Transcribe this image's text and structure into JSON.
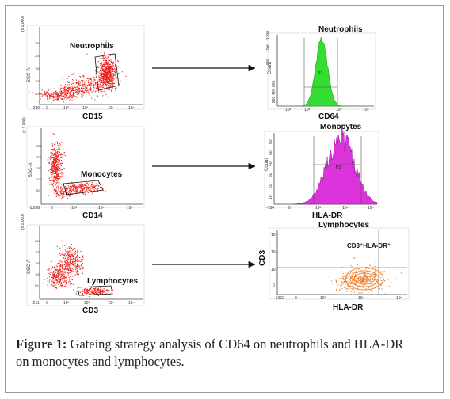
{
  "caption": {
    "figure_label": "Figure 1:",
    "text": " Gateing strategy analysis of CD64 on neutrophils and HLA-DR on monocytes and lymphocytes."
  },
  "colors": {
    "dot_red": "#e8201a",
    "hist_green": "#33dd33",
    "hist_magenta": "#dd33dd",
    "contour_orange": "#e87820",
    "frame": "#9a9a9a"
  },
  "panels": {
    "scatter_neutro": {
      "gate_label": "Neutrophils",
      "x_label": "CD15",
      "y_label": "SSC-A",
      "y_ticks": [
        "(x 1,000)",
        "250",
        "200",
        "150",
        "100",
        "50"
      ],
      "x_ticks": [
        "-289",
        "0",
        "10²",
        "10³",
        "10⁴",
        "10⁵"
      ]
    },
    "hist_neutro": {
      "title": "Neutrophils",
      "x_label": "CD64",
      "y_label": "Count",
      "gate": "P3",
      "y_ticks": [
        "1200",
        "1000",
        "800",
        "600",
        "400",
        "200"
      ],
      "x_ticks": [
        "10²",
        "10³",
        "10⁴",
        "10⁵"
      ]
    },
    "scatter_mono": {
      "gate_label": "Monocytes",
      "x_label": "CD14",
      "y_label": "SSC-A",
      "y_ticks": [
        "(x 1,000)",
        "250",
        "200",
        "150",
        "100",
        "50"
      ],
      "x_ticks": [
        "-1,238",
        "0",
        "10³",
        "10⁴",
        "10⁵"
      ]
    },
    "hist_mono": {
      "title": "Monocytes",
      "x_label": "HLA-DR",
      "y_label": "Count",
      "gate": "P3",
      "y_ticks": [
        "60",
        "50",
        "40",
        "30",
        "20",
        "10"
      ],
      "x_ticks": [
        "-184",
        "0",
        "10³",
        "10⁴",
        "10⁵"
      ]
    },
    "scatter_lymph": {
      "gate_label": "Lymphocytes",
      "x_label": "CD3",
      "y_label": "SSC-A",
      "y_ticks": [
        "(x 1,000)",
        "250",
        "200",
        "150",
        "100",
        "50"
      ],
      "x_ticks": [
        "-211",
        "0",
        "10²",
        "10³",
        "10⁴",
        "10⁵"
      ]
    },
    "contour_lymph": {
      "title": "Lymphocytes",
      "x_label": "HLA-DR",
      "y_label": "CD3",
      "quadrant_label": "CD3⁺HLA-DR⁺",
      "x_ticks": [
        "-1062",
        "0",
        "10³",
        "10⁴",
        "10⁵"
      ],
      "y_ticks": [
        "10⁵",
        "10⁴",
        "10³",
        "0"
      ]
    }
  }
}
